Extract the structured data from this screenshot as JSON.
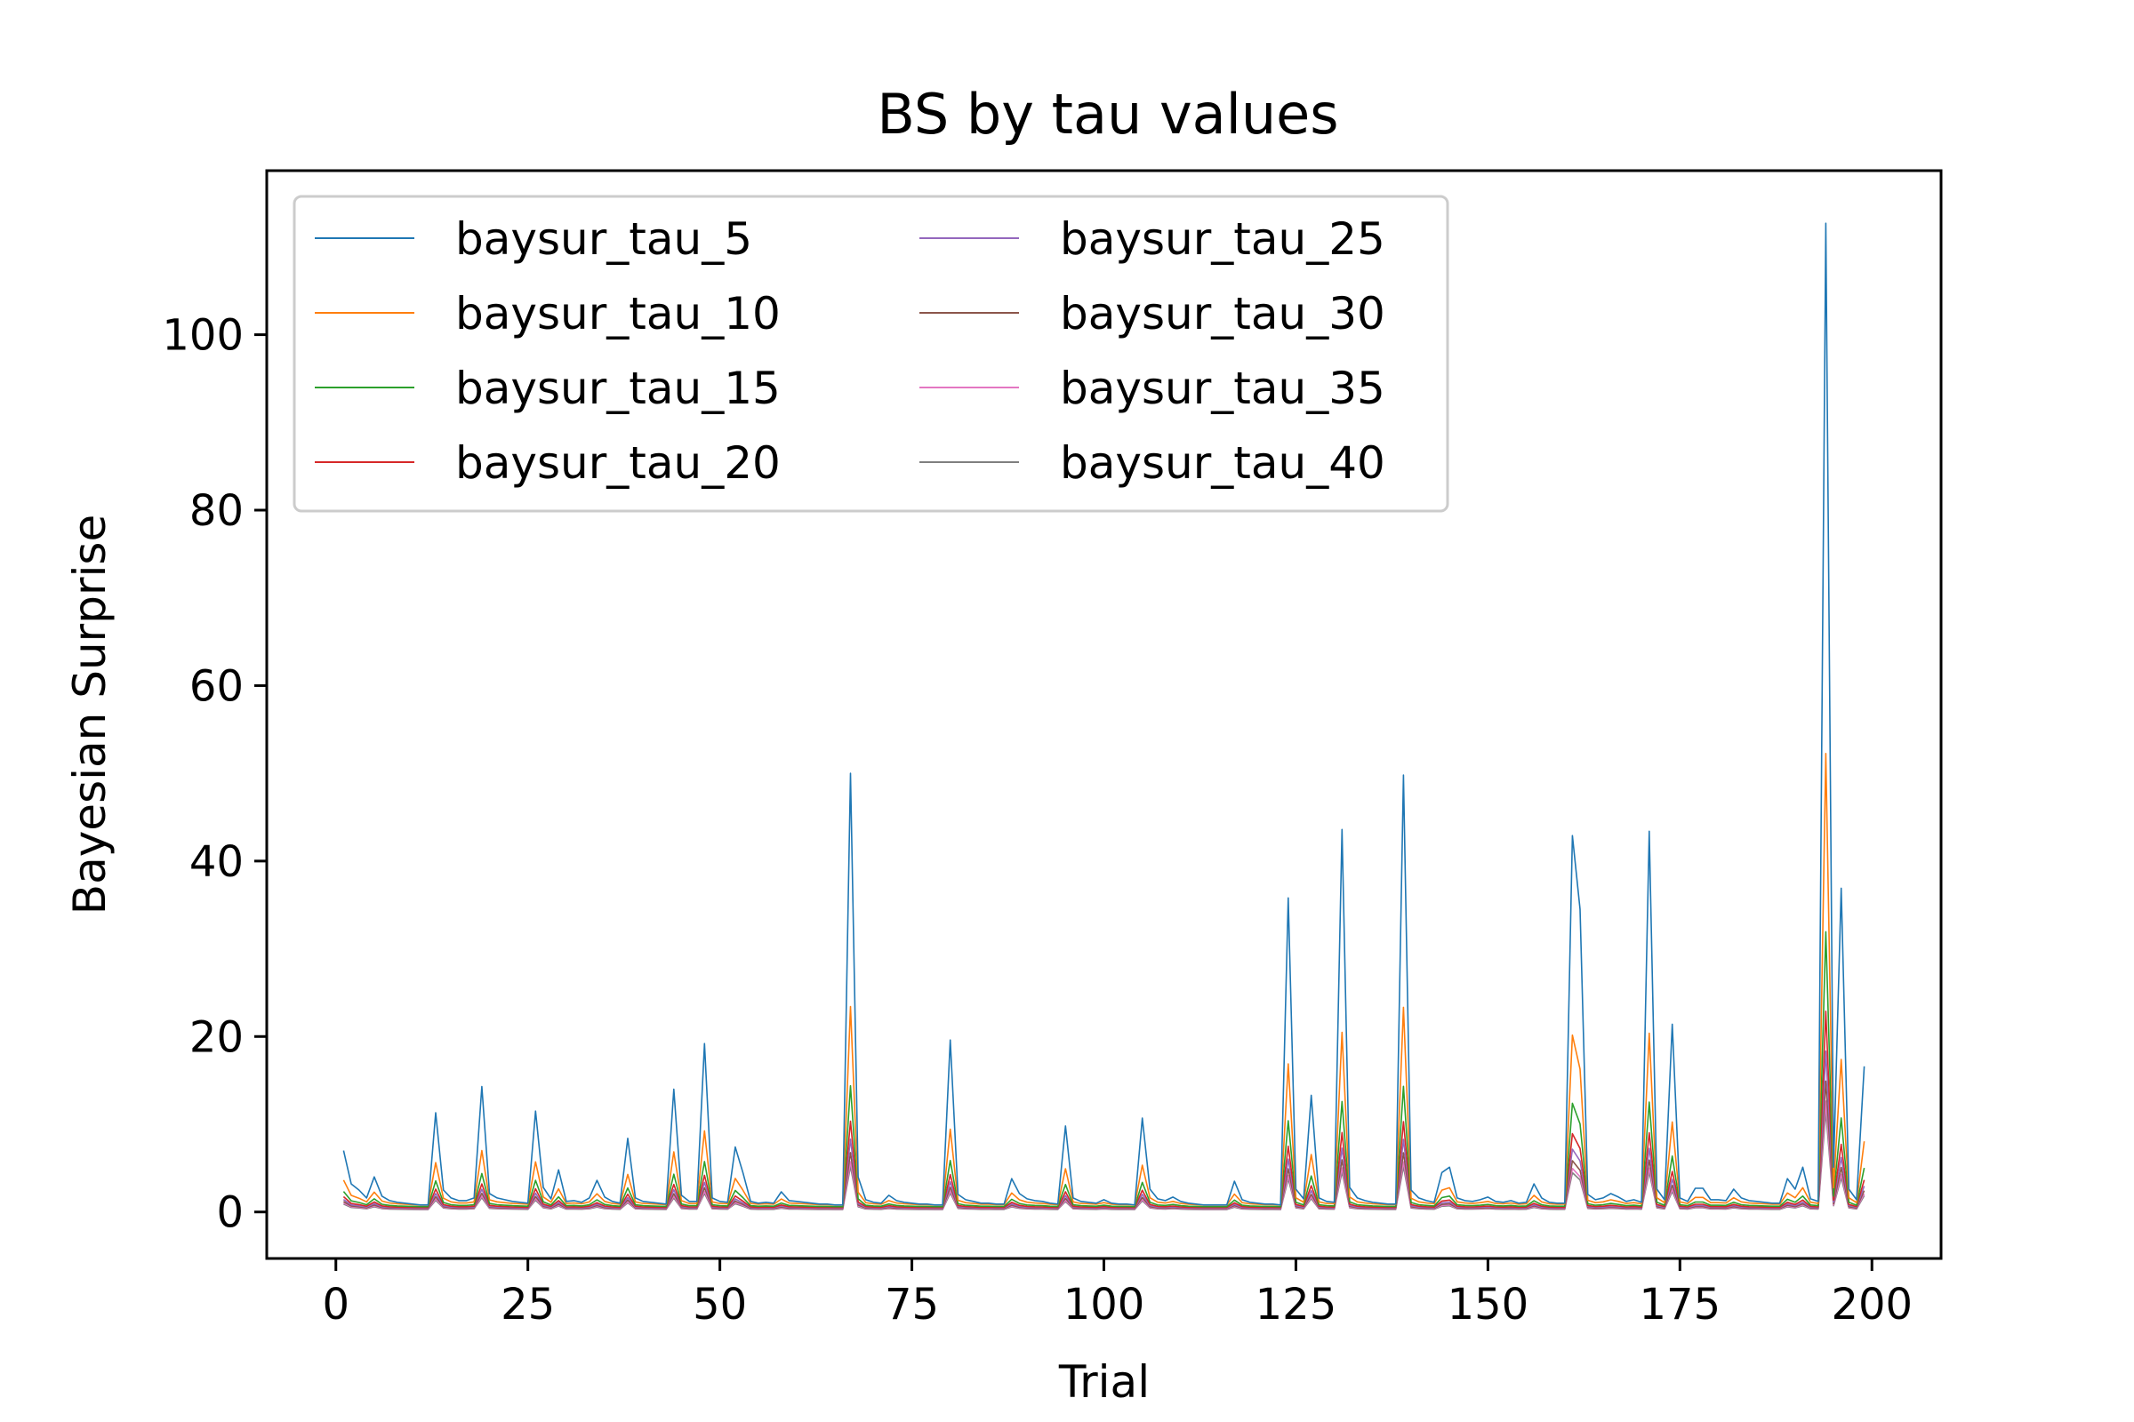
{
  "chart_data": {
    "type": "line",
    "title": "BS by tau values",
    "xlabel": "Trial",
    "ylabel": "Bayesian Surprise",
    "xlim": [
      -9,
      209
    ],
    "ylim": [
      -5.3,
      118.7
    ],
    "xticks": [
      0,
      25,
      50,
      75,
      100,
      125,
      150,
      175,
      200
    ],
    "yticks": [
      0,
      20,
      40,
      60,
      80,
      100
    ],
    "grid": false,
    "legend": {
      "placement": "top-left",
      "columns": 2
    },
    "x": [
      1,
      2,
      3,
      4,
      5,
      6,
      7,
      8,
      9,
      10,
      11,
      12,
      13,
      14,
      15,
      16,
      17,
      18,
      19,
      20,
      21,
      22,
      23,
      24,
      25,
      26,
      27,
      28,
      29,
      30,
      31,
      32,
      33,
      34,
      35,
      36,
      37,
      38,
      39,
      40,
      41,
      42,
      43,
      44,
      45,
      46,
      47,
      48,
      49,
      50,
      51,
      52,
      53,
      54,
      55,
      56,
      57,
      58,
      59,
      60,
      61,
      62,
      63,
      64,
      65,
      66,
      67,
      68,
      69,
      70,
      71,
      72,
      73,
      74,
      75,
      76,
      77,
      78,
      79,
      80,
      81,
      82,
      83,
      84,
      85,
      86,
      87,
      88,
      89,
      90,
      91,
      92,
      93,
      94,
      95,
      96,
      97,
      98,
      99,
      100,
      101,
      102,
      103,
      104,
      105,
      106,
      107,
      108,
      109,
      110,
      111,
      112,
      113,
      114,
      115,
      116,
      117,
      118,
      119,
      120,
      121,
      122,
      123,
      124,
      125,
      126,
      127,
      128,
      129,
      130,
      131,
      132,
      133,
      134,
      135,
      136,
      137,
      138,
      139,
      140,
      141,
      142,
      143,
      144,
      145,
      146,
      147,
      148,
      149,
      150,
      151,
      152,
      153,
      154,
      155,
      156,
      157,
      158,
      159,
      160,
      161,
      162,
      163,
      164,
      165,
      166,
      167,
      168,
      169,
      170,
      171,
      172,
      173,
      174,
      175,
      176,
      177,
      178,
      179,
      180,
      181,
      182,
      183,
      184,
      185,
      186,
      187,
      188,
      189,
      190,
      191,
      192,
      193,
      194,
      195,
      196,
      197,
      198,
      199,
      200
    ],
    "base": [
      7,
      3.2,
      2.5,
      1.6,
      4,
      1.8,
      1.3,
      1.1,
      1,
      0.9,
      0.8,
      0.8,
      11.3,
      2.5,
      1.6,
      1.3,
      1.3,
      1.6,
      14.3,
      2.1,
      1.6,
      1.4,
      1.2,
      1.1,
      1,
      11.5,
      2.8,
      1.5,
      4.8,
      1.2,
      1.3,
      1.1,
      1.6,
      3.6,
      1.7,
      1.2,
      1.0,
      8.4,
      1.6,
      1.2,
      1.1,
      1.0,
      0.9,
      14,
      1.9,
      1.2,
      1.2,
      19.2,
      1.6,
      1.2,
      1.1,
      7.4,
      4.5,
      1.2,
      1.0,
      1.1,
      1.0,
      2.3,
      1.3,
      1.2,
      1.1,
      1.0,
      0.9,
      0.9,
      0.8,
      0.8,
      50,
      4,
      1.4,
      1.1,
      1.0,
      1.9,
      1.3,
      1.1,
      1.0,
      0.9,
      0.9,
      0.8,
      0.8,
      19.6,
      2.0,
      1.4,
      1.2,
      1.0,
      1.0,
      0.9,
      0.9,
      3.8,
      2.1,
      1.5,
      1.3,
      1.2,
      1.0,
      0.9,
      9.8,
      1.6,
      1.2,
      1.1,
      1.0,
      1.4,
      1.0,
      0.9,
      0.9,
      0.8,
      10.7,
      2.6,
      1.5,
      1.3,
      1.7,
      1.2,
      1.0,
      0.9,
      0.8,
      0.8,
      0.8,
      0.8,
      3.5,
      1.4,
      1.1,
      1.0,
      0.9,
      0.9,
      0.8,
      35.8,
      2.6,
      1.5,
      13.3,
      1.6,
      1.2,
      1.1,
      43.6,
      2.8,
      1.6,
      1.3,
      1.1,
      1.0,
      0.9,
      0.9,
      49.8,
      2.5,
      1.6,
      1.3,
      1.1,
      4.5,
      5.1,
      1.6,
      1.3,
      1.2,
      1.4,
      1.7,
      1.2,
      1.1,
      1.3,
      1.0,
      1.1,
      3.2,
      1.6,
      1.1,
      1.0,
      1.0,
      42.9,
      34.5,
      2.0,
      1.4,
      1.6,
      2.1,
      1.7,
      1.2,
      1.4,
      1.1,
      43.4,
      2.6,
      1.4,
      21.4,
      1.6,
      1.2,
      2.7,
      2.7,
      1.4,
      1.4,
      1.3,
      2.6,
      1.6,
      1.3,
      1.2,
      1.1,
      1.0,
      1.0,
      3.8,
      2.6,
      5.1,
      1.5,
      1.2,
      112.7,
      5.1,
      36.9,
      2.6,
      1.4,
      16.6
    ],
    "series": [
      {
        "name": "baysur_tau_5",
        "color": "#1f77b4",
        "scale": 1.0,
        "floor": 0.0
      },
      {
        "name": "baysur_tau_10",
        "color": "#ff7f0e",
        "scale": 0.46,
        "floor": 0.42
      },
      {
        "name": "baysur_tau_15",
        "color": "#2ca02c",
        "scale": 0.28,
        "floor": 0.38
      },
      {
        "name": "baysur_tau_20",
        "color": "#d62728",
        "scale": 0.2,
        "floor": 0.34
      },
      {
        "name": "baysur_tau_25",
        "color": "#9467bd",
        "scale": 0.16,
        "floor": 0.3
      },
      {
        "name": "baysur_tau_30",
        "color": "#8c564b",
        "scale": 0.13,
        "floor": 0.27
      },
      {
        "name": "baysur_tau_35",
        "color": "#e377c2",
        "scale": 0.11,
        "floor": 0.24
      },
      {
        "name": "baysur_tau_40",
        "color": "#7f7f7f",
        "scale": 0.1,
        "floor": 0.2
      }
    ]
  }
}
